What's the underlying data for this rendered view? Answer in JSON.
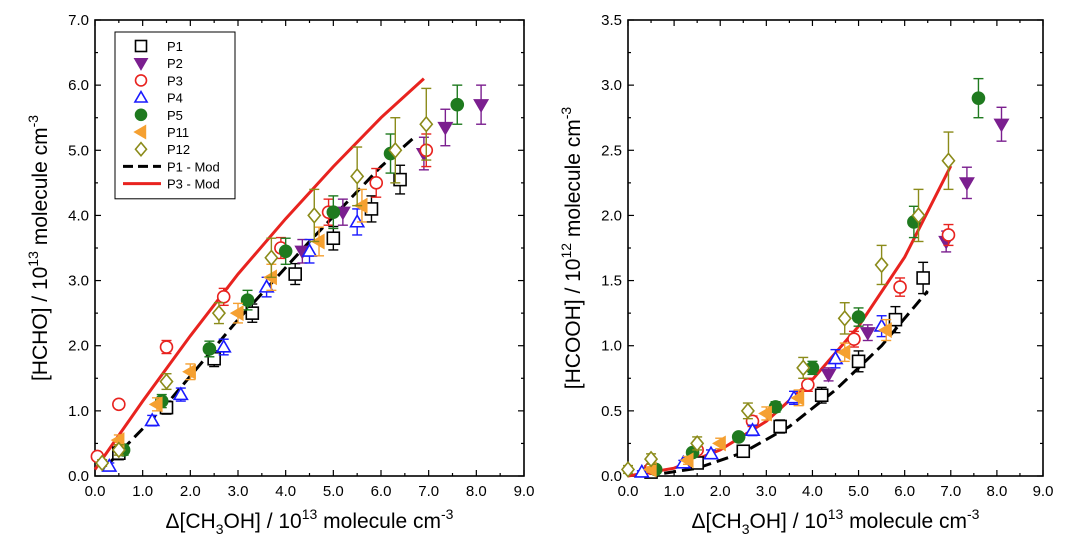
{
  "chart_data": [
    {
      "type": "scatter",
      "xlabel": {
        "pre": "Δ[CH",
        "sub": "3",
        "mid": "OH] / 10",
        "sup": "13",
        "post": " molecule cm",
        "sup2": "-3"
      },
      "ylabel": {
        "pre": "[HCHO] / 10",
        "sup": "13",
        "post": " molecule cm",
        "sup2": "-3"
      },
      "xlim": [
        0,
        9
      ],
      "ylim": [
        0,
        7
      ],
      "xticks": [
        "0.0",
        "1.0",
        "2.0",
        "3.0",
        "4.0",
        "5.0",
        "6.0",
        "7.0",
        "8.0",
        "9.0"
      ],
      "yticks": [
        "0.0",
        "1.0",
        "2.0",
        "3.0",
        "4.0",
        "5.0",
        "6.0",
        "7.0"
      ],
      "legend_position": "top-left",
      "series": [
        {
          "name": "P1",
          "marker": "square-open",
          "color": "#000000",
          "x": [
            0.5,
            1.5,
            2.5,
            3.3,
            4.2,
            5.0,
            5.8,
            6.4
          ],
          "y": [
            0.35,
            1.05,
            1.8,
            2.5,
            3.1,
            3.65,
            4.1,
            4.55
          ],
          "err": [
            0.1,
            0.1,
            0.12,
            0.14,
            0.16,
            0.18,
            0.2,
            0.22
          ]
        },
        {
          "name": "P2",
          "marker": "triangle-down-filled",
          "color": "#7b1f8f",
          "x": [
            4.35,
            5.2,
            6.9,
            7.35,
            8.1
          ],
          "y": [
            3.45,
            4.05,
            4.95,
            5.35,
            5.7
          ],
          "err": [
            0.18,
            0.2,
            0.25,
            0.28,
            0.3
          ]
        },
        {
          "name": "P3",
          "marker": "circle-open",
          "color": "#e8231f",
          "x": [
            0.05,
            0.5,
            1.5,
            2.7,
            3.9,
            4.9,
            5.9,
            6.95
          ],
          "y": [
            0.3,
            1.1,
            1.98,
            2.75,
            3.5,
            4.05,
            4.5,
            5.0
          ],
          "err": [
            0.05,
            0.06,
            0.1,
            0.13,
            0.16,
            0.2,
            0.22,
            0.25
          ]
        },
        {
          "name": "P4",
          "marker": "triangle-up-open",
          "color": "#1a1aff",
          "x": [
            0.3,
            1.2,
            1.8,
            2.7,
            3.6,
            4.5,
            5.5
          ],
          "y": [
            0.15,
            0.85,
            1.25,
            1.98,
            2.9,
            3.45,
            3.9
          ],
          "err": [
            0.05,
            0.08,
            0.1,
            0.12,
            0.15,
            0.18,
            0.2
          ]
        },
        {
          "name": "P5",
          "marker": "circle-filled",
          "color": "#1f7a1f",
          "x": [
            0.6,
            1.4,
            2.4,
            3.2,
            4.0,
            5.0,
            6.2,
            7.6
          ],
          "y": [
            0.4,
            1.15,
            1.95,
            2.7,
            3.45,
            4.05,
            4.95,
            5.7
          ],
          "err": [
            0.08,
            0.1,
            0.12,
            0.15,
            0.2,
            0.25,
            0.3,
            0.3
          ]
        },
        {
          "name": "P11",
          "marker": "triangle-left-filled",
          "color": "#f5a031",
          "x": [
            0.5,
            1.3,
            2.0,
            3.0,
            3.7,
            4.7,
            5.6
          ],
          "y": [
            0.55,
            1.1,
            1.6,
            2.5,
            3.05,
            3.6,
            4.15
          ],
          "err": [
            0.08,
            0.1,
            0.12,
            0.15,
            0.2,
            0.22,
            0.25
          ]
        },
        {
          "name": "P12",
          "marker": "diamond-open",
          "color": "#8b8b1a",
          "x": [
            0.15,
            0.5,
            1.5,
            2.6,
            3.7,
            4.6,
            5.5,
            6.3,
            6.95
          ],
          "y": [
            0.2,
            0.4,
            1.45,
            2.5,
            3.35,
            4.0,
            4.6,
            5.0,
            5.4
          ],
          "err": [
            0.05,
            0.08,
            0.12,
            0.16,
            0.3,
            0.4,
            0.45,
            0.5,
            0.55
          ]
        }
      ],
      "model_lines": [
        {
          "name": "P1 - Mod",
          "color": "#000000",
          "dash": true,
          "x": [
            0.3,
            1.5,
            3.0,
            4.5,
            6.0,
            6.7
          ],
          "y": [
            0.2,
            1.1,
            2.4,
            3.6,
            4.75,
            5.2
          ]
        },
        {
          "name": "P3 - Mod",
          "color": "#e8231f",
          "dash": false,
          "x": [
            0.0,
            1.0,
            2.0,
            3.0,
            4.0,
            5.0,
            6.0,
            6.9
          ],
          "y": [
            0.1,
            1.15,
            2.15,
            3.1,
            3.95,
            4.75,
            5.5,
            6.1
          ]
        }
      ]
    },
    {
      "type": "scatter",
      "xlabel": {
        "pre": "Δ[CH",
        "sub": "3",
        "mid": "OH] / 10",
        "sup": "13",
        "post": " molecule cm",
        "sup2": "-3"
      },
      "ylabel": {
        "pre": "[HCOOH] / 10",
        "sup": "12",
        "post": " molecule cm",
        "sup2": "-3"
      },
      "xlim": [
        0,
        9
      ],
      "ylim": [
        0,
        3.5
      ],
      "xticks": [
        "0.0",
        "1.0",
        "2.0",
        "3.0",
        "4.0",
        "5.0",
        "6.0",
        "7.0",
        "8.0",
        "9.0"
      ],
      "yticks": [
        "0.0",
        "0.5",
        "1.0",
        "1.5",
        "2.0",
        "2.5",
        "3.0",
        "3.5"
      ],
      "series": [
        {
          "name": "P1",
          "marker": "square-open",
          "color": "#000000",
          "x": [
            0.5,
            1.5,
            2.5,
            3.3,
            4.2,
            5.0,
            5.8,
            6.4
          ],
          "y": [
            0.03,
            0.1,
            0.19,
            0.38,
            0.62,
            0.88,
            1.2,
            1.52
          ],
          "err": [
            0.02,
            0.03,
            0.04,
            0.05,
            0.06,
            0.08,
            0.1,
            0.12
          ]
        },
        {
          "name": "P2",
          "marker": "triangle-down-filled",
          "color": "#7b1f8f",
          "x": [
            4.35,
            5.2,
            6.9,
            7.35,
            8.1
          ],
          "y": [
            0.78,
            1.1,
            1.8,
            2.25,
            2.7
          ],
          "err": [
            0.05,
            0.06,
            0.08,
            0.12,
            0.13
          ]
        },
        {
          "name": "P3",
          "marker": "circle-open",
          "color": "#e8231f",
          "x": [
            0.5,
            1.5,
            2.7,
            3.9,
            4.9,
            5.9,
            6.95
          ],
          "y": [
            0.06,
            0.2,
            0.42,
            0.7,
            1.05,
            1.45,
            1.85
          ],
          "err": [
            0.02,
            0.03,
            0.04,
            0.05,
            0.06,
            0.07,
            0.08
          ]
        },
        {
          "name": "P4",
          "marker": "triangle-up-open",
          "color": "#1a1aff",
          "x": [
            0.3,
            1.2,
            1.8,
            2.7,
            3.6,
            4.5,
            5.5
          ],
          "y": [
            0.03,
            0.1,
            0.17,
            0.35,
            0.6,
            0.9,
            1.15
          ],
          "err": [
            0.01,
            0.02,
            0.03,
            0.04,
            0.05,
            0.07,
            0.08
          ]
        },
        {
          "name": "P5",
          "marker": "circle-filled",
          "color": "#1f7a1f",
          "x": [
            0.6,
            1.4,
            2.4,
            3.2,
            4.0,
            5.0,
            6.2,
            7.6
          ],
          "y": [
            0.05,
            0.18,
            0.3,
            0.53,
            0.83,
            1.22,
            1.95,
            2.9
          ],
          "err": [
            0.02,
            0.03,
            0.03,
            0.04,
            0.05,
            0.07,
            0.12,
            0.15
          ]
        },
        {
          "name": "P11",
          "marker": "triangle-left-filled",
          "color": "#f5a031",
          "x": [
            0.5,
            1.3,
            2.0,
            3.0,
            3.7,
            4.7,
            5.6
          ],
          "y": [
            0.05,
            0.12,
            0.25,
            0.48,
            0.6,
            0.95,
            1.12
          ],
          "err": [
            0.02,
            0.03,
            0.04,
            0.05,
            0.06,
            0.07,
            0.08
          ]
        },
        {
          "name": "P12",
          "marker": "diamond-open",
          "color": "#8b8b1a",
          "x": [
            0.0,
            0.5,
            1.5,
            2.6,
            3.8,
            4.7,
            5.5,
            6.3,
            6.95
          ],
          "y": [
            0.05,
            0.13,
            0.25,
            0.5,
            0.83,
            1.21,
            1.62,
            2.0,
            2.42
          ],
          "err": [
            0.03,
            0.04,
            0.05,
            0.06,
            0.08,
            0.12,
            0.15,
            0.2,
            0.22
          ]
        }
      ],
      "model_lines": [
        {
          "name": "P1 - Mod",
          "color": "#000000",
          "dash": true,
          "x": [
            0.4,
            1.5,
            2.5,
            3.5,
            4.5,
            5.5,
            6.5
          ],
          "y": [
            0.0,
            0.06,
            0.18,
            0.38,
            0.66,
            1.0,
            1.42
          ]
        },
        {
          "name": "P3 - Mod",
          "color": "#e8231f",
          "dash": false,
          "x": [
            0.0,
            1.0,
            2.0,
            3.0,
            4.0,
            5.0,
            6.0,
            7.0
          ],
          "y": [
            0.0,
            0.06,
            0.2,
            0.42,
            0.74,
            1.15,
            1.68,
            2.38
          ]
        }
      ]
    }
  ]
}
